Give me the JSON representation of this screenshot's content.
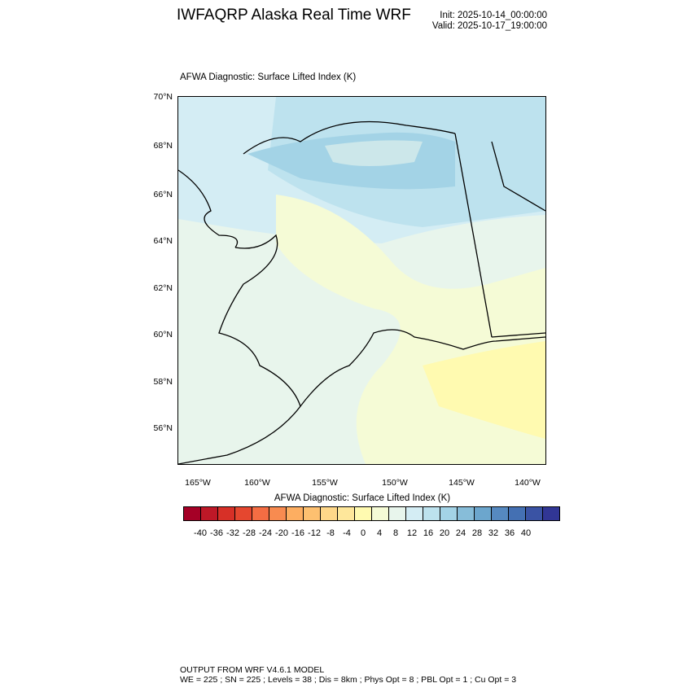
{
  "header": {
    "title": "IWFAQRP Alaska Real Time WRF",
    "init": "Init: 2025-10-14_00:00:00",
    "valid": "Valid: 2025-10-17_19:00:00"
  },
  "plot": {
    "subtitle": "AFWA Diagnostic: Surface Lifted Index   (K)",
    "lat_labels": [
      "70°N",
      "68°N",
      "66°N",
      "64°N",
      "62°N",
      "60°N",
      "58°N",
      "56°N"
    ],
    "lon_labels": [
      "165°W",
      "160°W",
      "155°W",
      "150°W",
      "145°W",
      "140°W"
    ]
  },
  "colorbar": {
    "title": "AFWA Diagnostic: Surface Lifted Index  (K)",
    "labels": [
      "-40",
      "-36",
      "-32",
      "-28",
      "-24",
      "-20",
      "-16",
      "-12",
      "-8",
      "-4",
      "0",
      "4",
      "8",
      "12",
      "16",
      "20",
      "24",
      "28",
      "32",
      "36",
      "40"
    ],
    "colors": [
      "#a50026",
      "#be1827",
      "#d73027",
      "#e5472f",
      "#f46d43",
      "#f88b50",
      "#fdae61",
      "#fdc070",
      "#fed789",
      "#fee79b",
      "#fffab0",
      "#f5fbd6",
      "#e8f5ec",
      "#d4edf4",
      "#bde2ee",
      "#a3d3e6",
      "#87bdd9",
      "#6ca6cd",
      "#5689c0",
      "#4470b3",
      "#3a53a4",
      "#313695"
    ]
  },
  "footer": {
    "line1": "OUTPUT FROM WRF V4.6.1 MODEL",
    "line2": "WE = 225 ; SN = 225 ; Levels = 38 ; Dis = 8km ; Phys Opt = 8 ; PBL Opt = 1 ; Cu Opt = 3"
  }
}
